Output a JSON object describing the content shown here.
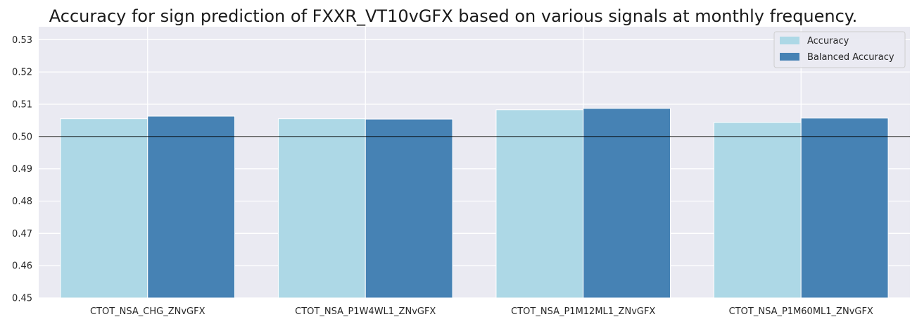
{
  "chart_data": {
    "type": "bar",
    "title": "Accuracy for sign prediction of FXXR_VT10vGFX based on various signals at monthly frequency.",
    "xlabel": "",
    "ylabel": "",
    "categories": [
      "CTOT_NSA_CHG_ZNvGFX",
      "CTOT_NSA_P1W4WL1_ZNvGFX",
      "CTOT_NSA_P1M12ML1_ZNvGFX",
      "CTOT_NSA_P1M60ML1_ZNvGFX"
    ],
    "series": [
      {
        "name": "Accuracy",
        "color": "#add8e6",
        "values": [
          0.5055,
          0.5055,
          0.5083,
          0.5044
        ]
      },
      {
        "name": "Balanced Accuracy",
        "color": "#4682b4",
        "values": [
          0.5063,
          0.5054,
          0.5087,
          0.5057
        ]
      }
    ],
    "ylim": [
      0.45,
      0.534
    ],
    "yticks": [
      "0.45",
      "0.46",
      "0.47",
      "0.48",
      "0.49",
      "0.50",
      "0.51",
      "0.52",
      "0.53"
    ],
    "reference_line": 0.5,
    "grid": true,
    "legend_position": "top-right"
  }
}
